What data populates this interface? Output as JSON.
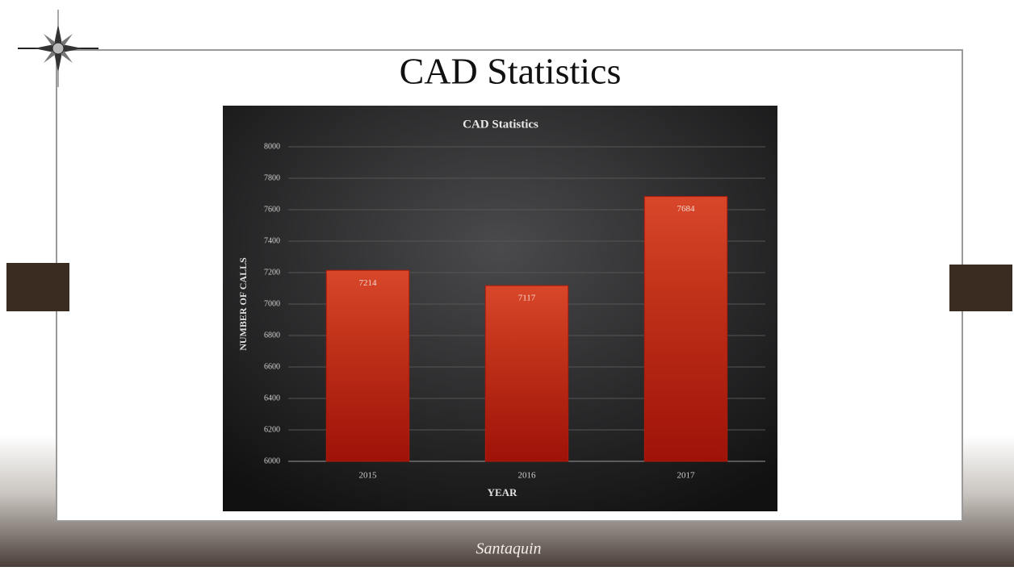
{
  "slide": {
    "title": "CAD Statistics",
    "logo": "Santaquin"
  },
  "chart_data": {
    "type": "bar",
    "title": "CAD Statistics",
    "x_label": "YEAR",
    "y_label": "NUMBER OF CALLS",
    "categories": [
      "2015",
      "2016",
      "2017"
    ],
    "values": [
      7214,
      7117,
      7684
    ],
    "color": "#b01a0c",
    "ylim": [
      6000,
      8000
    ],
    "yticks": [
      6000,
      6200,
      6400,
      6600,
      6800,
      7000,
      7200,
      7400,
      7600,
      7800,
      8000
    ],
    "grid": true
  }
}
